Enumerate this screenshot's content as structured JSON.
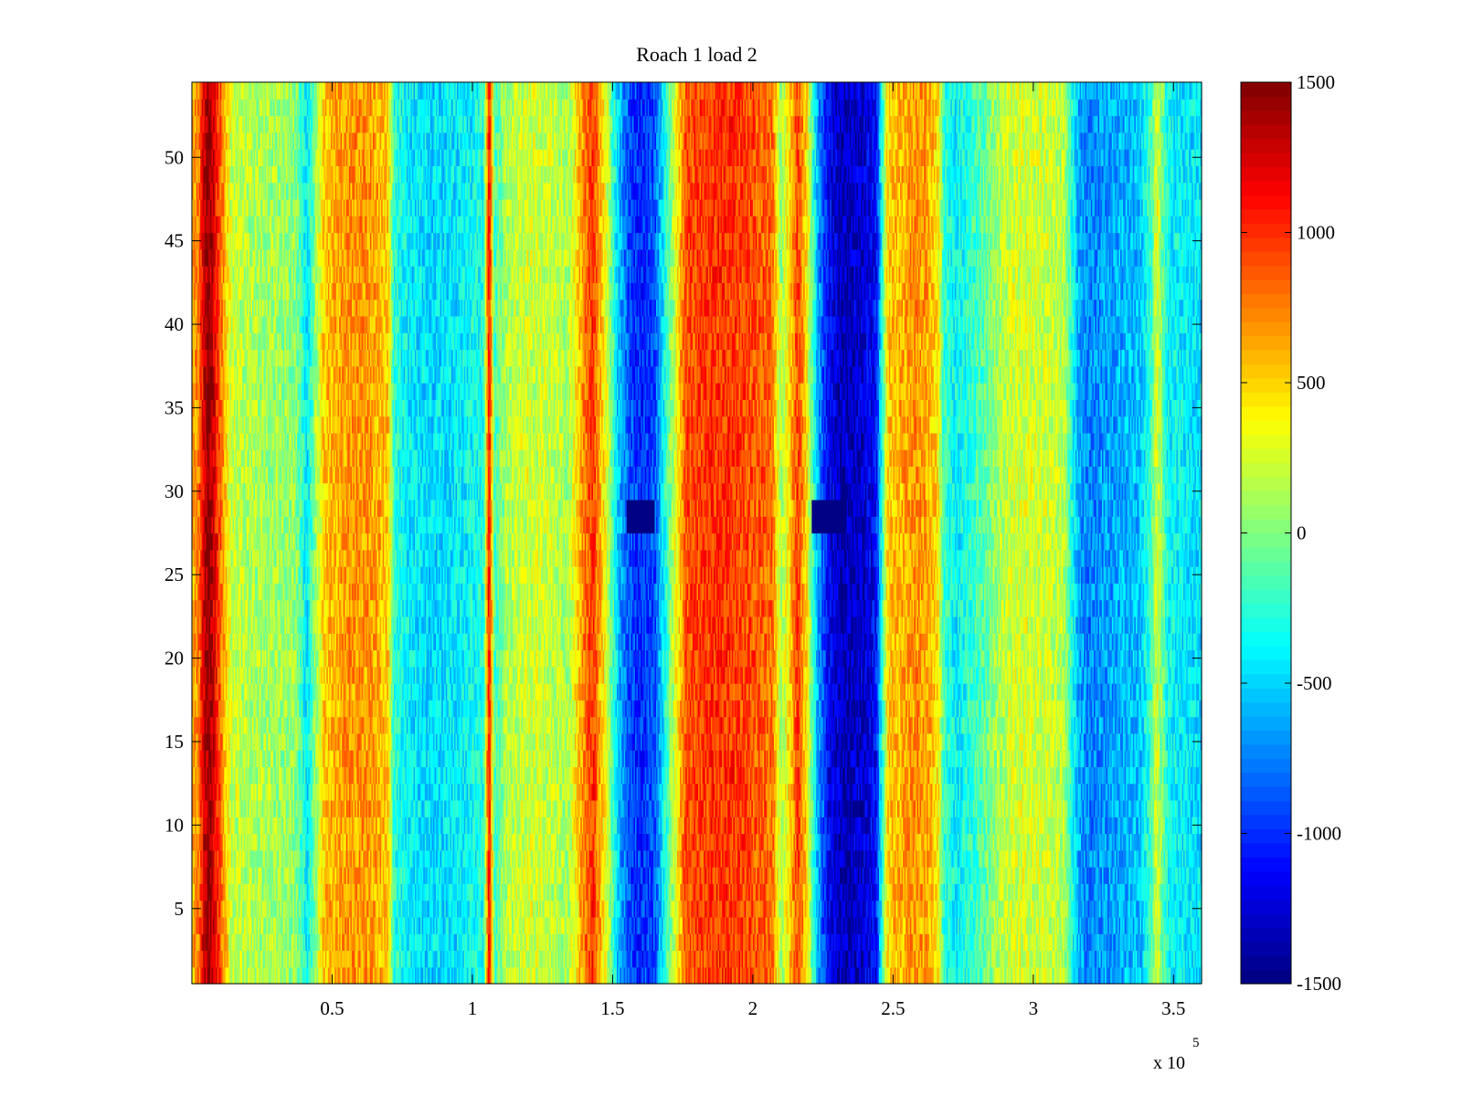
{
  "chart_data": {
    "type": "heatmap",
    "title": "Roach 1 load 2",
    "xlabel": "",
    "ylabel": "",
    "x_tick_labels": [
      "0.5",
      "1",
      "1.5",
      "2",
      "2.5",
      "3",
      "3.5"
    ],
    "x_ticks": [
      50000,
      100000,
      150000,
      200000,
      250000,
      300000,
      350000
    ],
    "x_exponent_label": "x 10",
    "x_exponent_power": "5",
    "xlim": [
      0,
      360000
    ],
    "y_tick_labels": [
      "5",
      "10",
      "15",
      "20",
      "25",
      "30",
      "35",
      "40",
      "45",
      "50"
    ],
    "y_ticks": [
      5,
      10,
      15,
      20,
      25,
      30,
      35,
      40,
      45,
      50
    ],
    "ylim": [
      0.5,
      54.5
    ],
    "colorbar": {
      "tick_labels": [
        "1500",
        "1000",
        "500",
        "0",
        "-500",
        "-1000",
        "-1500"
      ],
      "ticks": [
        1500,
        1000,
        500,
        0,
        -500,
        -1000,
        -1500
      ],
      "range": [
        -1500,
        1500
      ],
      "colormap": "jet"
    },
    "column_profile": {
      "x": [
        0,
        2500,
        4000,
        6000,
        8000,
        14000,
        22000,
        30000,
        37000,
        41000,
        47000,
        55000,
        63000,
        70000,
        72000,
        77000,
        85000,
        95000,
        104000,
        106000,
        108000,
        112000,
        120000,
        128000,
        134000,
        140000,
        143000,
        148000,
        152000,
        156000,
        160000,
        165000,
        170000,
        176000,
        182000,
        188000,
        195000,
        201000,
        207000,
        210000,
        213000,
        216000,
        219000,
        223000,
        227000,
        232000,
        236000,
        240000,
        244000,
        248000,
        253000,
        258000,
        262000,
        266000,
        268000,
        272000,
        276000,
        281000,
        287000,
        293000,
        299000,
        305000,
        311000,
        316000,
        320000,
        323000,
        327000,
        332000,
        338000,
        342000,
        344000,
        348000,
        352000,
        357000,
        360000
      ],
      "values": [
        600,
        750,
        1200,
        1500,
        1200,
        220,
        130,
        100,
        50,
        -450,
        530,
        680,
        680,
        520,
        -250,
        -400,
        -480,
        -420,
        -300,
        1200,
        -200,
        150,
        250,
        200,
        100,
        750,
        1000,
        250,
        -550,
        -900,
        -1000,
        -900,
        -100,
        880,
        950,
        1000,
        950,
        880,
        800,
        100,
        450,
        950,
        500,
        -600,
        -1150,
        -1350,
        -1300,
        -1250,
        -1100,
        500,
        600,
        700,
        650,
        450,
        -200,
        -400,
        -300,
        -150,
        100,
        250,
        250,
        220,
        150,
        -600,
        -750,
        -700,
        -650,
        -600,
        -550,
        -200,
        300,
        -350,
        -400,
        -450,
        -450
      ]
    },
    "dark_spots": [
      {
        "x_range": [
          155000,
          165000
        ],
        "y_range": [
          27.5,
          29.5
        ],
        "value": -1500
      },
      {
        "x_range": [
          221000,
          233000
        ],
        "y_range": [
          27.5,
          29.5
        ],
        "value": -1500
      }
    ]
  }
}
